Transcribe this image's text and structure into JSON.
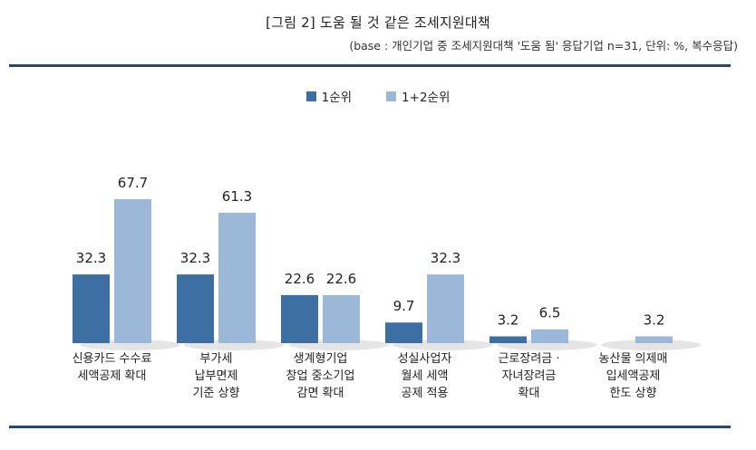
{
  "header": {
    "title": "[그림 2] 도움 될 것 같은 조세지원대책",
    "subtitle": "(base : 개인기업 중 조세지원대책 '도움 됨' 응답기업 n=31, 단위: %, 복수응답)"
  },
  "chart_data": {
    "type": "bar",
    "categories": [
      [
        "신용카드 수수료",
        "세액공제 확대"
      ],
      [
        "부가세",
        "납부면제",
        "기준 상향"
      ],
      [
        "생계형기업",
        "창업 중소기업",
        "감면 확대"
      ],
      [
        "성실사업자",
        "월세 세액",
        "공제 적용"
      ],
      [
        "근로장려금 ·",
        "자녀장려금",
        "확대"
      ],
      [
        "농산물 의제매",
        "입세액공제",
        "한도 상향"
      ]
    ],
    "series": [
      {
        "name": "1순위",
        "color": "#3d6fa3",
        "values": [
          32.3,
          32.3,
          22.6,
          9.7,
          3.2,
          null
        ]
      },
      {
        "name": "1+2순위",
        "color": "#9bb8d8",
        "values": [
          67.7,
          61.3,
          22.6,
          32.3,
          6.5,
          3.2
        ]
      }
    ],
    "ylim": [
      0,
      80
    ],
    "grid": false,
    "legend": "top-center"
  }
}
